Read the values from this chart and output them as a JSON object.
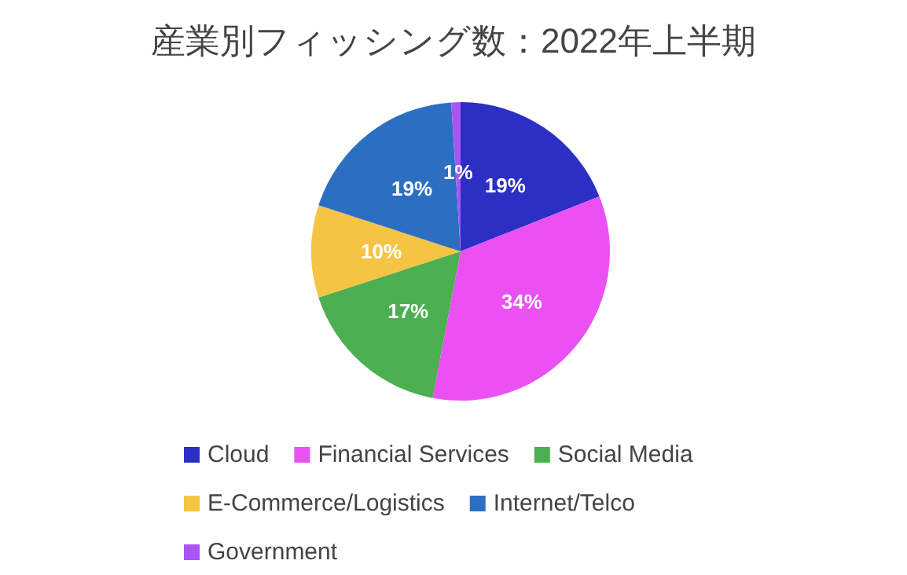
{
  "chart_data": {
    "type": "pie",
    "title": "産業別フィッシング数：2022年上半期",
    "categories": [
      "Cloud",
      "Financial Services",
      "Social Media",
      "E-Commerce/Logistics",
      "Internet/Telco",
      "Government"
    ],
    "values": [
      19,
      34,
      17,
      10,
      19,
      1
    ],
    "colors": [
      "#2b2fc3",
      "#ea50f2",
      "#4caf52",
      "#f6c444",
      "#2c6fc2",
      "#a956f5"
    ],
    "value_labels": [
      "19%",
      "34%",
      "17%",
      "10%",
      "19%",
      "1%"
    ],
    "legend": "bottom"
  }
}
